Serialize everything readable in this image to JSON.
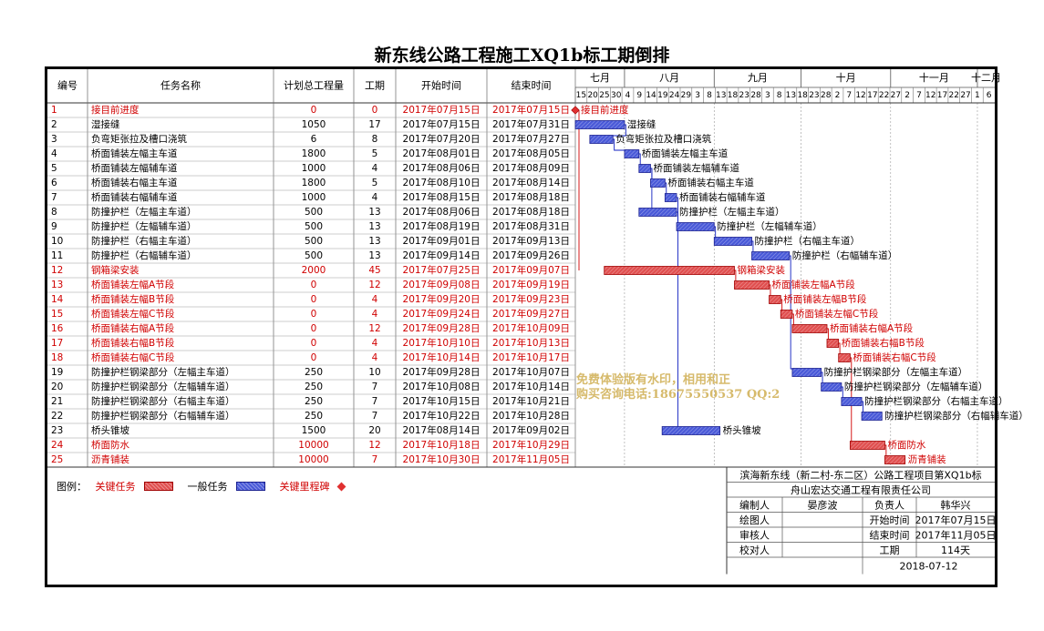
{
  "title": "新东线公路工程施工XQ1b标工期倒排",
  "headers": {
    "no": "编号",
    "name": "任务名称",
    "qty": "计划总工程量",
    "dur": "工期",
    "start": "开始时间",
    "end": "结束时间"
  },
  "months": [
    "七月",
    "八月",
    "九月",
    "十月",
    "十一月",
    "十二月"
  ],
  "day_ticks": [
    "15",
    "20",
    "25",
    "30",
    "4",
    "9",
    "14",
    "19",
    "24",
    "29",
    "3",
    "8",
    "13",
    "18",
    "23",
    "28",
    "3",
    "8",
    "13",
    "18",
    "23",
    "28",
    "2",
    "7",
    "12",
    "17",
    "22",
    "27",
    "2",
    "7",
    "12",
    "17",
    "22",
    "27",
    "1",
    "6"
  ],
  "chart_data": {
    "type": "gantt",
    "x_axis_start": "2017-07-15",
    "x_axis_end": "2017-12-07",
    "tasks": [
      {
        "no": "1",
        "name": "接目前进度",
        "qty": "0",
        "dur": "0",
        "start": "2017年07月15日",
        "end": "2017年07月15日",
        "s": "2017-07-15",
        "e": "2017-07-15",
        "kind": "milestone"
      },
      {
        "no": "2",
        "name": "湿接缝",
        "qty": "1050",
        "dur": "17",
        "start": "2017年07月15日",
        "end": "2017年07月31日",
        "s": "2017-07-15",
        "e": "2017-07-31",
        "kind": "normal"
      },
      {
        "no": "3",
        "name": "负弯矩张拉及槽口浇筑",
        "qty": "6",
        "dur": "8",
        "start": "2017年07月20日",
        "end": "2017年07月27日",
        "s": "2017-07-20",
        "e": "2017-07-27",
        "kind": "normal"
      },
      {
        "no": "4",
        "name": "桥面铺装左幅主车道",
        "qty": "1800",
        "dur": "5",
        "start": "2017年08月01日",
        "end": "2017年08月05日",
        "s": "2017-08-01",
        "e": "2017-08-05",
        "kind": "normal"
      },
      {
        "no": "5",
        "name": "桥面铺装左幅辅车道",
        "qty": "1000",
        "dur": "4",
        "start": "2017年08月06日",
        "end": "2017年08月09日",
        "s": "2017-08-06",
        "e": "2017-08-09",
        "kind": "normal"
      },
      {
        "no": "6",
        "name": "桥面铺装右幅主车道",
        "qty": "1800",
        "dur": "5",
        "start": "2017年08月10日",
        "end": "2017年08月14日",
        "s": "2017-08-10",
        "e": "2017-08-14",
        "kind": "normal"
      },
      {
        "no": "7",
        "name": "桥面铺装右幅辅车道",
        "qty": "1000",
        "dur": "4",
        "start": "2017年08月15日",
        "end": "2017年08月18日",
        "s": "2017-08-15",
        "e": "2017-08-18",
        "kind": "normal"
      },
      {
        "no": "8",
        "name": "防撞护栏（左幅主车道）",
        "qty": "500",
        "dur": "13",
        "start": "2017年08月06日",
        "end": "2017年08月18日",
        "s": "2017-08-06",
        "e": "2017-08-18",
        "kind": "normal"
      },
      {
        "no": "9",
        "name": "防撞护栏（左幅辅车道）",
        "qty": "500",
        "dur": "13",
        "start": "2017年08月19日",
        "end": "2017年08月31日",
        "s": "2017-08-19",
        "e": "2017-08-31",
        "kind": "normal"
      },
      {
        "no": "10",
        "name": "防撞护栏（右幅主车道）",
        "qty": "500",
        "dur": "13",
        "start": "2017年09月01日",
        "end": "2017年09月13日",
        "s": "2017-09-01",
        "e": "2017-09-13",
        "kind": "normal"
      },
      {
        "no": "11",
        "name": "防撞护栏（右幅辅车道）",
        "qty": "500",
        "dur": "13",
        "start": "2017年09月14日",
        "end": "2017年09月26日",
        "s": "2017-09-14",
        "e": "2017-09-26",
        "kind": "normal"
      },
      {
        "no": "12",
        "name": "钢箱梁安装",
        "qty": "2000",
        "dur": "45",
        "start": "2017年07月25日",
        "end": "2017年09月07日",
        "s": "2017-07-25",
        "e": "2017-09-07",
        "kind": "critical"
      },
      {
        "no": "13",
        "name": "桥面铺装左幅A节段",
        "qty": "0",
        "dur": "12",
        "start": "2017年09月08日",
        "end": "2017年09月19日",
        "s": "2017-09-08",
        "e": "2017-09-19",
        "kind": "critical"
      },
      {
        "no": "14",
        "name": "桥面铺装左幅B节段",
        "qty": "0",
        "dur": "4",
        "start": "2017年09月20日",
        "end": "2017年09月23日",
        "s": "2017-09-20",
        "e": "2017-09-23",
        "kind": "critical"
      },
      {
        "no": "15",
        "name": "桥面铺装左幅C节段",
        "qty": "0",
        "dur": "4",
        "start": "2017年09月24日",
        "end": "2017年09月27日",
        "s": "2017-09-24",
        "e": "2017-09-27",
        "kind": "critical"
      },
      {
        "no": "16",
        "name": "桥面铺装右幅A节段",
        "qty": "0",
        "dur": "12",
        "start": "2017年09月28日",
        "end": "2017年10月09日",
        "s": "2017-09-28",
        "e": "2017-10-09",
        "kind": "critical"
      },
      {
        "no": "17",
        "name": "桥面铺装右幅B节段",
        "qty": "0",
        "dur": "4",
        "start": "2017年10月10日",
        "end": "2017年10月13日",
        "s": "2017-10-10",
        "e": "2017-10-13",
        "kind": "critical"
      },
      {
        "no": "18",
        "name": "桥面铺装右幅C节段",
        "qty": "0",
        "dur": "4",
        "start": "2017年10月14日",
        "end": "2017年10月17日",
        "s": "2017-10-14",
        "e": "2017-10-17",
        "kind": "critical"
      },
      {
        "no": "19",
        "name": "防撞护栏钢梁部分（左幅主车道）",
        "qty": "250",
        "dur": "10",
        "start": "2017年09月28日",
        "end": "2017年10月07日",
        "s": "2017-09-28",
        "e": "2017-10-07",
        "kind": "normal"
      },
      {
        "no": "20",
        "name": "防撞护栏钢梁部分（左幅辅车道）",
        "qty": "250",
        "dur": "7",
        "start": "2017年10月08日",
        "end": "2017年10月14日",
        "s": "2017-10-08",
        "e": "2017-10-14",
        "kind": "normal"
      },
      {
        "no": "21",
        "name": "防撞护栏钢梁部分（右幅主车道）",
        "qty": "250",
        "dur": "7",
        "start": "2017年10月15日",
        "end": "2017年10月21日",
        "s": "2017-10-15",
        "e": "2017-10-21",
        "kind": "normal"
      },
      {
        "no": "22",
        "name": "防撞护栏钢梁部分（右幅辅车道）",
        "qty": "250",
        "dur": "7",
        "start": "2017年10月22日",
        "end": "2017年10月28日",
        "s": "2017-10-22",
        "e": "2017-10-28",
        "kind": "normal"
      },
      {
        "no": "23",
        "name": "桥头锥坡",
        "qty": "1500",
        "dur": "20",
        "start": "2017年08月14日",
        "end": "2017年09月02日",
        "s": "2017-08-14",
        "e": "2017-09-02",
        "kind": "normal"
      },
      {
        "no": "24",
        "name": "桥面防水",
        "qty": "10000",
        "dur": "12",
        "start": "2017年10月18日",
        "end": "2017年10月29日",
        "s": "2017-10-18",
        "e": "2017-10-29",
        "kind": "critical"
      },
      {
        "no": "25",
        "name": "沥青铺装",
        "qty": "10000",
        "dur": "7",
        "start": "2017年10月30日",
        "end": "2017年11月05日",
        "s": "2017-10-30",
        "e": "2017-11-05",
        "kind": "critical"
      }
    ]
  },
  "legend": {
    "label": "图例：",
    "critical": "关键任务",
    "normal": "一般任务",
    "milestone": "关键里程碑"
  },
  "watermarks": [
    "免费体验版有水印，相用和正",
    "购买咨询电话:18675550537 QQ:2"
  ],
  "info": {
    "project": "滨海新东线（新二村-东二区）公路工程项目第XQ1b标",
    "company": "舟山宏达交通工程有限责任公司",
    "rows": [
      [
        "编制人",
        "晏彦波",
        "负责人",
        "韩华兴"
      ],
      [
        "绘图人",
        "",
        "开始时间",
        "2017年07月15日"
      ],
      [
        "审核人",
        "",
        "结束时间",
        "2017年11月05日"
      ],
      [
        "校对人",
        "",
        "工期",
        "114天"
      ]
    ],
    "date": "2018-07-12"
  },
  "colors": {
    "critical_text": "#d00000",
    "critical_bar": "#e05050",
    "normal_bar": "#4a5ad8",
    "link_line": "#1020c0",
    "critical_link": "#d00000",
    "milestone": "#e03030"
  }
}
